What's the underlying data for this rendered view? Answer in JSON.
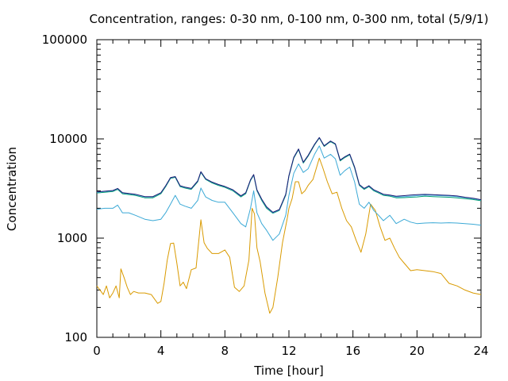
{
  "chart_data": {
    "type": "line",
    "title": "Concentration, ranges: 0-30 nm, 0-100 nm, 0-300 nm, total (5/9/1)",
    "xlabel": "Time [hour]",
    "ylabel": "Concentration",
    "xlim": [
      0,
      24
    ],
    "ylim": [
      100,
      100000
    ],
    "yscale": "log",
    "grid": false,
    "x_ticks": [
      0,
      4,
      8,
      12,
      16,
      20,
      24
    ],
    "x_tick_labels": [
      "0",
      "4",
      "8",
      "12",
      "16",
      "20",
      "24"
    ],
    "y_ticks": [
      100,
      1000,
      10000,
      100000
    ],
    "y_tick_labels": [
      "100",
      "1000",
      "10000",
      "100000"
    ],
    "series": [
      {
        "color": "#d99a00",
        "x": [
          0,
          0.2,
          0.4,
          0.6,
          0.8,
          1.0,
          1.2,
          1.4,
          1.5,
          1.7,
          1.9,
          2.1,
          2.3,
          2.6,
          3.0,
          3.4,
          3.8,
          4.0,
          4.2,
          4.4,
          4.6,
          4.8,
          5.0,
          5.2,
          5.4,
          5.6,
          5.9,
          6.2,
          6.5,
          6.7,
          6.9,
          7.2,
          7.6,
          8.0,
          8.3,
          8.6,
          8.9,
          9.2,
          9.5,
          9.7,
          9.85,
          10.0,
          10.2,
          10.5,
          10.8,
          11.0,
          11.3,
          11.6,
          11.9,
          12.0,
          12.2,
          12.4,
          12.6,
          12.8,
          13.0,
          13.2,
          13.5,
          13.9,
          14.1,
          14.4,
          14.7,
          15.0,
          15.3,
          15.6,
          15.9,
          16.2,
          16.5,
          16.8,
          17.1,
          17.4,
          17.7,
          18.0,
          18.3,
          18.6,
          18.9,
          19.2,
          19.6,
          20.0,
          20.5,
          21.0,
          21.5,
          22.0,
          22.5,
          23.0,
          23.5,
          24.0
        ],
        "y": [
          330,
          300,
          270,
          330,
          250,
          280,
          330,
          250,
          490,
          400,
          320,
          270,
          290,
          280,
          280,
          270,
          220,
          230,
          350,
          600,
          880,
          890,
          560,
          330,
          360,
          310,
          480,
          500,
          1530,
          900,
          790,
          700,
          700,
          760,
          640,
          320,
          290,
          330,
          600,
          2000,
          1750,
          800,
          580,
          280,
          175,
          200,
          400,
          900,
          1600,
          2000,
          2500,
          3700,
          3700,
          2800,
          3000,
          3400,
          3900,
          6400,
          5200,
          3700,
          2800,
          2900,
          2000,
          1500,
          1300,
          950,
          720,
          1100,
          2200,
          1900,
          1300,
          950,
          1000,
          790,
          640,
          560,
          470,
          480,
          470,
          460,
          440,
          350,
          330,
          300,
          280,
          270
        ]
      },
      {
        "color": "#3ba9d6",
        "x": [
          0,
          0.5,
          1.0,
          1.3,
          1.6,
          2.0,
          2.4,
          3.0,
          3.5,
          4.0,
          4.3,
          4.6,
          4.9,
          5.2,
          5.5,
          5.9,
          6.3,
          6.5,
          6.8,
          7.2,
          7.6,
          8.0,
          8.5,
          9.0,
          9.3,
          9.6,
          9.8,
          10.0,
          10.3,
          10.6,
          11.0,
          11.4,
          11.8,
          12.0,
          12.3,
          12.6,
          12.9,
          13.2,
          13.6,
          13.9,
          14.2,
          14.6,
          14.9,
          15.2,
          15.5,
          15.8,
          16.1,
          16.4,
          16.7,
          17.0,
          17.3,
          17.6,
          17.9,
          18.3,
          18.7,
          19.2,
          19.6,
          20.0,
          20.5,
          21.0,
          21.5,
          22.0,
          22.5,
          23.0,
          23.5,
          24.0
        ],
        "y": [
          1950,
          2000,
          2000,
          2150,
          1800,
          1800,
          1700,
          1550,
          1500,
          1550,
          1800,
          2200,
          2700,
          2200,
          2100,
          2000,
          2400,
          3200,
          2600,
          2400,
          2300,
          2300,
          1800,
          1400,
          1300,
          2000,
          3000,
          1800,
          1400,
          1200,
          950,
          1100,
          1700,
          2700,
          4500,
          5600,
          4600,
          5000,
          7000,
          8500,
          6400,
          7000,
          6300,
          4300,
          4800,
          5200,
          3700,
          2200,
          2000,
          2300,
          1900,
          1700,
          1500,
          1700,
          1400,
          1550,
          1450,
          1400,
          1420,
          1430,
          1420,
          1430,
          1420,
          1400,
          1380,
          1350
        ]
      },
      {
        "color": "#009e73",
        "x": [
          0,
          0.5,
          1.0,
          1.3,
          1.6,
          2.0,
          2.4,
          3.0,
          3.5,
          4.0,
          4.3,
          4.6,
          4.9,
          5.2,
          5.5,
          5.9,
          6.3,
          6.5,
          6.8,
          7.2,
          7.6,
          8.0,
          8.5,
          9.0,
          9.3,
          9.6,
          9.8,
          10.0,
          10.3,
          10.6,
          11.0,
          11.4,
          11.8,
          12.0,
          12.3,
          12.6,
          12.9,
          13.2,
          13.6,
          13.9,
          14.2,
          14.6,
          14.9,
          15.2,
          15.5,
          15.8,
          16.1,
          16.4,
          16.7,
          17.0,
          17.3,
          17.6,
          17.9,
          18.3,
          18.7,
          19.2,
          19.6,
          20.0,
          20.5,
          21.0,
          21.5,
          22.0,
          22.5,
          23.0,
          23.5,
          24.0
        ],
        "y": [
          2850,
          2900,
          2950,
          3100,
          2800,
          2750,
          2700,
          2550,
          2550,
          2800,
          3300,
          4000,
          4100,
          3300,
          3200,
          3100,
          3700,
          4600,
          3900,
          3600,
          3400,
          3250,
          3000,
          2600,
          2800,
          3800,
          4300,
          3000,
          2400,
          2000,
          1780,
          1900,
          2700,
          4200,
          6400,
          7800,
          5700,
          6700,
          8700,
          10200,
          8400,
          9400,
          8800,
          6000,
          6500,
          6900,
          5100,
          3400,
          3100,
          3300,
          3000,
          2850,
          2700,
          2650,
          2550,
          2560,
          2580,
          2600,
          2650,
          2620,
          2600,
          2580,
          2550,
          2500,
          2450,
          2380
        ]
      },
      {
        "color": "#56b4e9",
        "x": [
          0,
          0.5,
          1.0,
          1.3,
          1.6,
          2.0,
          2.4,
          3.0,
          3.5,
          4.0,
          4.3,
          4.6,
          4.9,
          5.2,
          5.5,
          5.9,
          6.3,
          6.5,
          6.8,
          7.2,
          7.6,
          8.0,
          8.5,
          9.0,
          9.3,
          9.6,
          9.8,
          10.0,
          10.3,
          10.6,
          11.0,
          11.4,
          11.8,
          12.0,
          12.3,
          12.6,
          12.9,
          13.2,
          13.6,
          13.9,
          14.2,
          14.6,
          14.9,
          15.2,
          15.5,
          15.8,
          16.1,
          16.4,
          16.7,
          17.0,
          17.3,
          17.6,
          17.9,
          18.3,
          18.7,
          19.2,
          19.6,
          20.0,
          20.5,
          21.0,
          21.5,
          22.0,
          22.5,
          23.0,
          23.5,
          24.0
        ],
        "y": [
          2900,
          2950,
          3000,
          3150,
          2850,
          2800,
          2750,
          2600,
          2600,
          2850,
          3350,
          4050,
          4150,
          3350,
          3250,
          3150,
          3750,
          4650,
          3950,
          3650,
          3450,
          3300,
          3050,
          2650,
          2850,
          3850,
          4350,
          3050,
          2450,
          2050,
          1800,
          1920,
          2750,
          4250,
          6500,
          7900,
          5800,
          6800,
          8800,
          10300,
          8500,
          9500,
          8900,
          6100,
          6600,
          7000,
          5200,
          3450,
          3150,
          3350,
          3050,
          2900,
          2750,
          2700,
          2600,
          2620,
          2650,
          2680,
          2720,
          2700,
          2680,
          2660,
          2620,
          2560,
          2500,
          2420
        ]
      },
      {
        "color": "#191970",
        "x": [
          0,
          0.5,
          1.0,
          1.3,
          1.6,
          2.0,
          2.4,
          3.0,
          3.5,
          4.0,
          4.3,
          4.6,
          4.9,
          5.2,
          5.5,
          5.9,
          6.3,
          6.5,
          6.8,
          7.2,
          7.6,
          8.0,
          8.5,
          9.0,
          9.3,
          9.6,
          9.8,
          10.0,
          10.3,
          10.6,
          11.0,
          11.4,
          11.8,
          12.0,
          12.3,
          12.6,
          12.9,
          13.2,
          13.6,
          13.9,
          14.2,
          14.6,
          14.9,
          15.2,
          15.5,
          15.8,
          16.1,
          16.4,
          16.7,
          17.0,
          17.3,
          17.6,
          17.9,
          18.3,
          18.7,
          19.2,
          19.6,
          20.0,
          20.5,
          21.0,
          21.5,
          22.0,
          22.5,
          23.0,
          23.5,
          24.0
        ],
        "y": [
          2920,
          2970,
          3020,
          3170,
          2870,
          2820,
          2770,
          2620,
          2620,
          2870,
          3370,
          4070,
          4170,
          3370,
          3270,
          3170,
          3770,
          4670,
          3970,
          3670,
          3470,
          3320,
          3070,
          2670,
          2870,
          3870,
          4370,
          3070,
          2470,
          2070,
          1820,
          1940,
          2770,
          4270,
          6520,
          7920,
          5820,
          6820,
          8820,
          10320,
          8520,
          9520,
          8920,
          6120,
          6620,
          7020,
          5220,
          3470,
          3170,
          3370,
          3070,
          2920,
          2770,
          2720,
          2640,
          2680,
          2720,
          2740,
          2760,
          2740,
          2720,
          2700,
          2660,
          2580,
          2520,
          2440
        ]
      }
    ]
  }
}
